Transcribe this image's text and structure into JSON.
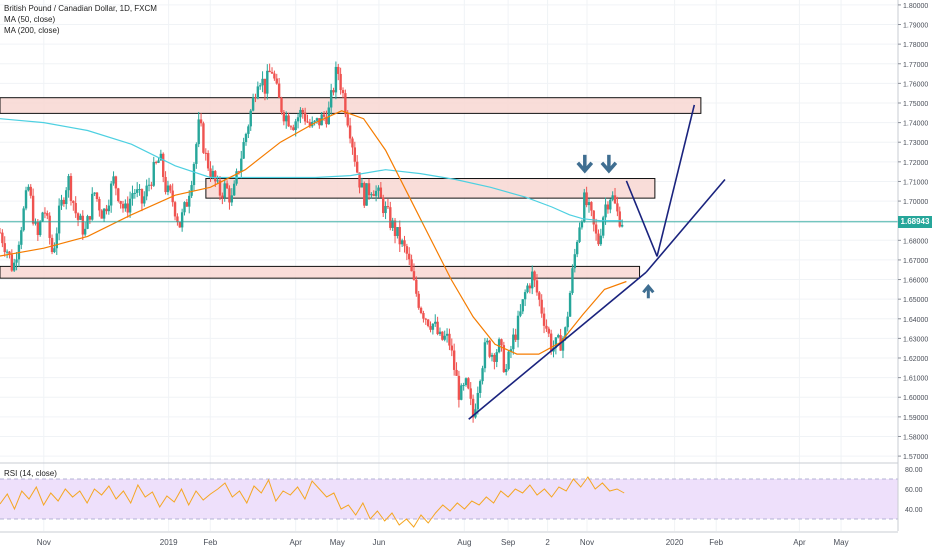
{
  "title": "British Pound / Canadian Dollar, 1D, FXCM",
  "indicators": {
    "ma50": "MA (50, close)",
    "ma200": "MA (200, close)",
    "rsi": "RSI (14, close)"
  },
  "last_price": "1.68943",
  "colors": {
    "up": "#26a69a",
    "down": "#ef5350",
    "ma50": "#f57c00",
    "ma200": "#4dd0e1",
    "last_price": "#26a69a",
    "zone_fill": "#f8d7d2",
    "trendline": "#1a237e",
    "arrow": "#3f6e91",
    "rsi_line": "#f5a623",
    "rsi_band": "#eee0fb"
  },
  "chart_data": [
    {
      "type": "candlestick",
      "instrument": "GBP/CAD",
      "timeframe": "1D",
      "y_ticks": [
        "1.80000",
        "1.79000",
        "1.78000",
        "1.77000",
        "1.76000",
        "1.75000",
        "1.74000",
        "1.73000",
        "1.72000",
        "1.71000",
        "1.70000",
        "1.69000",
        "1.68000",
        "1.67000",
        "1.66000",
        "1.65000",
        "1.64000",
        "1.63000",
        "1.62000",
        "1.61000",
        "1.60000",
        "1.59000",
        "1.58000",
        "1.57000"
      ],
      "x_ticks": [
        "Nov",
        "2019",
        "Feb",
        "Apr",
        "May",
        "Jun",
        "Aug",
        "Sep",
        "2",
        "Nov",
        "2020",
        "Feb",
        "Apr",
        "May"
      ],
      "x_tick_positions": [
        0,
        2.85,
        3.8,
        5.75,
        6.7,
        7.65,
        9.6,
        10.6,
        11.5,
        12.4,
        14.4,
        15.35,
        17.25,
        18.2
      ],
      "ylim": [
        1.5675,
        1.8025
      ],
      "xlim": [
        -1.0,
        19.5
      ],
      "close_path": [
        [
          -1.0,
          1.684
        ],
        [
          -0.85,
          1.676
        ],
        [
          -0.7,
          1.665
        ],
        [
          -0.5,
          1.69
        ],
        [
          -0.35,
          1.707
        ],
        [
          -0.15,
          1.68
        ],
        [
          0.0,
          1.698
        ],
        [
          0.2,
          1.673
        ],
        [
          0.35,
          1.693
        ],
        [
          0.55,
          1.712
        ],
        [
          0.75,
          1.692
        ],
        [
          0.95,
          1.684
        ],
        [
          1.15,
          1.705
        ],
        [
          1.35,
          1.693
        ],
        [
          1.6,
          1.711
        ],
        [
          1.85,
          1.694
        ],
        [
          2.05,
          1.706
        ],
        [
          2.25,
          1.699
        ],
        [
          2.45,
          1.712
        ],
        [
          2.65,
          1.722
        ],
        [
          2.8,
          1.705
        ],
        [
          2.95,
          1.7
        ],
        [
          3.1,
          1.688
        ],
        [
          3.25,
          1.698
        ],
        [
          3.4,
          1.716
        ],
        [
          3.55,
          1.74
        ],
        [
          3.7,
          1.722
        ],
        [
          3.85,
          1.713
        ],
        [
          4.0,
          1.704
        ],
        [
          4.15,
          1.707
        ],
        [
          4.3,
          1.7
        ],
        [
          4.45,
          1.717
        ],
        [
          4.6,
          1.733
        ],
        [
          4.75,
          1.748
        ],
        [
          4.9,
          1.765
        ],
        [
          5.05,
          1.758
        ],
        [
          5.2,
          1.768
        ],
        [
          5.35,
          1.752
        ],
        [
          5.5,
          1.744
        ],
        [
          5.7,
          1.74
        ],
        [
          5.9,
          1.746
        ],
        [
          6.1,
          1.737
        ],
        [
          6.3,
          1.741
        ],
        [
          6.5,
          1.745
        ],
        [
          6.7,
          1.768
        ],
        [
          6.85,
          1.752
        ],
        [
          7.0,
          1.736
        ],
        [
          7.15,
          1.716
        ],
        [
          7.3,
          1.702
        ],
        [
          7.5,
          1.708
        ],
        [
          7.7,
          1.7
        ],
        [
          7.9,
          1.69
        ],
        [
          8.1,
          1.681
        ],
        [
          8.3,
          1.672
        ],
        [
          8.45,
          1.657
        ],
        [
          8.6,
          1.646
        ],
        [
          8.75,
          1.64
        ],
        [
          8.9,
          1.637
        ],
        [
          9.05,
          1.629
        ],
        [
          9.15,
          1.63
        ],
        [
          9.25,
          1.629
        ],
        [
          9.35,
          1.617
        ],
        [
          9.5,
          1.6
        ],
        [
          9.65,
          1.606
        ],
        [
          9.8,
          1.59
        ],
        [
          9.95,
          1.612
        ],
        [
          10.1,
          1.627
        ],
        [
          10.25,
          1.622
        ],
        [
          10.4,
          1.626
        ],
        [
          10.55,
          1.613
        ],
        [
          10.7,
          1.628
        ],
        [
          10.85,
          1.639
        ],
        [
          11.0,
          1.654
        ],
        [
          11.15,
          1.662
        ],
        [
          11.3,
          1.65
        ],
        [
          11.45,
          1.638
        ],
        [
          11.6,
          1.625
        ],
        [
          11.75,
          1.627
        ],
        [
          11.9,
          1.632
        ],
        [
          12.05,
          1.66
        ],
        [
          12.2,
          1.686
        ],
        [
          12.35,
          1.701
        ],
        [
          12.5,
          1.691
        ],
        [
          12.65,
          1.678
        ],
        [
          12.8,
          1.697
        ],
        [
          12.95,
          1.704
        ],
        [
          13.1,
          1.693
        ],
        [
          13.25,
          1.689
        ]
      ],
      "ma50_path": [
        [
          -1.0,
          1.672
        ],
        [
          0.0,
          1.676
        ],
        [
          1.0,
          1.682
        ],
        [
          2.0,
          1.693
        ],
        [
          3.0,
          1.703
        ],
        [
          3.8,
          1.707
        ],
        [
          4.6,
          1.716
        ],
        [
          5.4,
          1.73
        ],
        [
          6.2,
          1.74
        ],
        [
          6.8,
          1.746
        ],
        [
          7.3,
          1.742
        ],
        [
          7.8,
          1.726
        ],
        [
          8.3,
          1.704
        ],
        [
          8.8,
          1.682
        ],
        [
          9.3,
          1.66
        ],
        [
          9.8,
          1.641
        ],
        [
          10.3,
          1.627
        ],
        [
          10.8,
          1.622
        ],
        [
          11.3,
          1.622
        ],
        [
          11.8,
          1.628
        ],
        [
          12.3,
          1.642
        ],
        [
          12.8,
          1.655
        ],
        [
          13.3,
          1.659
        ]
      ],
      "ma200_path": [
        [
          -1.0,
          1.742
        ],
        [
          0.0,
          1.74
        ],
        [
          1.0,
          1.736
        ],
        [
          2.0,
          1.729
        ],
        [
          3.0,
          1.718
        ],
        [
          3.8,
          1.712
        ],
        [
          4.6,
          1.712
        ],
        [
          5.4,
          1.712
        ],
        [
          6.2,
          1.712
        ],
        [
          7.0,
          1.713
        ],
        [
          7.8,
          1.716
        ],
        [
          8.6,
          1.714
        ],
        [
          9.4,
          1.711
        ],
        [
          10.2,
          1.707
        ],
        [
          11.0,
          1.702
        ],
        [
          11.6,
          1.697
        ],
        [
          12.0,
          1.693
        ],
        [
          12.3,
          1.691
        ],
        [
          12.7,
          1.69
        ],
        [
          13.2,
          1.69
        ]
      ],
      "zones": [
        [
          -1.0,
          15.0,
          1.7447,
          1.7527
        ],
        [
          3.7,
          13.95,
          1.7015,
          1.7115
        ],
        [
          -1.0,
          13.6,
          1.6607,
          1.6667
        ]
      ],
      "trendlines": [
        [
          [
            9.7,
            1.5888
          ],
          [
            13.75,
            1.6637
          ]
        ],
        [
          [
            13.75,
            1.6637
          ],
          [
            15.55,
            1.711
          ]
        ],
        [
          [
            13.3,
            1.7103
          ],
          [
            14.0,
            1.6718
          ]
        ],
        [
          [
            14.0,
            1.6718
          ],
          [
            14.85,
            1.749
          ]
        ]
      ],
      "arrows_down": [
        [
          12.35,
          1.7195
        ],
        [
          12.9,
          1.7195
        ]
      ],
      "arrows_up": [
        [
          13.8,
          1.6535
        ]
      ]
    },
    {
      "type": "line",
      "name": "RSI (14, close)",
      "y_ticks": [
        "80.00",
        "60.00",
        "40.00"
      ],
      "ylim": [
        18,
        82
      ],
      "band": [
        30,
        70
      ],
      "values": [
        45,
        55,
        40,
        58,
        50,
        62,
        44,
        56,
        48,
        60,
        52,
        58,
        46,
        60,
        54,
        63,
        50,
        58,
        46,
        64,
        52,
        57,
        42,
        53,
        47,
        60,
        44,
        58,
        49,
        55,
        60,
        66,
        52,
        58,
        46,
        63,
        56,
        69,
        48,
        58,
        54,
        62,
        50,
        68,
        60,
        52,
        56,
        40,
        44,
        34,
        46,
        30,
        38,
        28,
        36,
        24,
        30,
        22,
        34,
        26,
        36,
        44,
        38,
        46,
        40,
        48,
        44,
        52,
        46,
        58,
        52,
        60,
        56,
        64,
        54,
        60,
        52,
        62,
        58,
        70,
        62,
        72,
        60,
        66,
        58,
        60,
        56
      ]
    }
  ]
}
